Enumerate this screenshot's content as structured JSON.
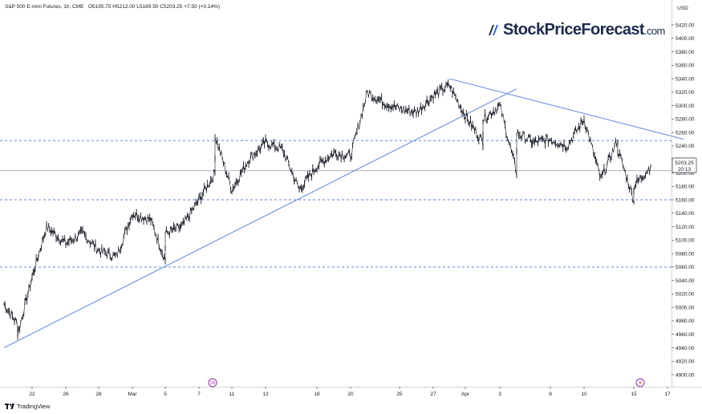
{
  "header": {
    "symbol": "S&P 500 E-mini Futures, 1h, CME",
    "ohlc": "O5195.75  H5212.00  L5189.50  C5203.25  +7.50 (+0.14%)"
  },
  "logo": {
    "name": "StockPriceForecast",
    "domain": ".com"
  },
  "footer": {
    "brand": "TradingView"
  },
  "price_tag": {
    "price": "5203.25",
    "countdown": "20:13"
  },
  "colors": {
    "accent": "#2962ff",
    "trendline": "#5b86e5",
    "candles": "#131722",
    "support": "#5b86e5",
    "current_line": "#9598a1"
  },
  "icons": {
    "event_left": "event-icon",
    "event_right": "flash-icon"
  },
  "chart_data": {
    "type": "line",
    "title": "",
    "yaxis": {
      "unit": "USD",
      "range": [
        4880,
        5440
      ],
      "ticks": [
        4900,
        4920,
        4940,
        4960,
        4980,
        5000,
        5020,
        5040,
        5060,
        5080,
        5100,
        5120,
        5140,
        5160,
        5180,
        5200,
        5220,
        5240,
        5260,
        5280,
        5300,
        5320,
        5340,
        5360,
        5380,
        5400,
        5420
      ],
      "tick_labels": [
        "4900.00",
        "4920.00",
        "4940.00",
        "4960.00",
        "4980.00",
        "5000.00",
        "5020.00",
        "5040.00",
        "5060.00",
        "5080.00",
        "5100.00",
        "5120.00",
        "5140.00",
        "5160.00",
        "5180.00",
        "5200.00",
        "5220.00",
        "5240.00",
        "5260.00",
        "5280.00",
        "5300.00",
        "5320.00",
        "5340.00",
        "5360.00",
        "5380.00",
        "5400.00",
        "5420.00"
      ]
    },
    "xaxis": {
      "ticks": [
        "Feb 22",
        "Feb 26",
        "Feb 28",
        "Mar 1",
        "Mar 5",
        "Mar 7",
        "Mar 11",
        "Mar 13",
        "Mar 18",
        "Mar 20",
        "Mar 25",
        "Mar 27",
        "Apr 1",
        "Apr 3",
        "Apr 8",
        "Apr 10",
        "Apr 15",
        "Apr 17"
      ],
      "tick_labels": [
        "22",
        "26",
        "28",
        "Mar",
        "5",
        "7",
        "11",
        "13",
        "18",
        "20",
        "25",
        "27",
        "Apr",
        "3",
        "8",
        "10",
        "15",
        "17"
      ]
    },
    "series": [
      {
        "x": [
          "Feb 20",
          "Feb 21",
          "Feb 21",
          "Feb 22",
          "Feb 23",
          "Feb 26",
          "Feb 27",
          "Feb 28",
          "Feb 29",
          "Mar 1",
          "Mar 4",
          "Mar 5",
          "Mar 5",
          "Mar 6",
          "Mar 7",
          "Mar 8",
          "Mar 8",
          "Mar 11",
          "Mar 12",
          "Mar 13",
          "Mar 14",
          "Mar 15",
          "Mar 18",
          "Mar 19",
          "Mar 20",
          "Mar 21",
          "Mar 22",
          "Mar 25",
          "Mar 26",
          "Mar 27",
          "Mar 28",
          "Apr 1",
          "Apr 2",
          "Apr 2",
          "Apr 3",
          "Apr 4",
          "Apr 4",
          "Apr 5",
          "Apr 8",
          "Apr 9",
          "Apr 10",
          "Apr 11",
          "Apr 12",
          "Apr 12",
          "Apr 15",
          "Apr 15",
          "Apr 16"
        ],
        "y": [
          5005,
          4975,
          4960,
          5045,
          5120,
          5095,
          5110,
          5085,
          5075,
          5140,
          5130,
          5070,
          5110,
          5120,
          5160,
          5200,
          5255,
          5175,
          5220,
          5245,
          5235,
          5175,
          5210,
          5230,
          5225,
          5320,
          5305,
          5295,
          5290,
          5315,
          5330,
          5285,
          5245,
          5280,
          5300,
          5200,
          5260,
          5245,
          5250,
          5240,
          5280,
          5190,
          5250,
          5235,
          5160,
          5180,
          5210
        ]
      }
    ],
    "trendlines": [
      {
        "from": {
          "x": "Feb 20",
          "y": 4940
        },
        "to": {
          "x": "Apr 4",
          "y": 5325
        }
      },
      {
        "from": {
          "x": "Mar 28",
          "y": 5340
        },
        "to": {
          "x": "Apr 18",
          "y": 5250
        }
      }
    ],
    "horizontal_levels": [
      5060,
      5160,
      5248
    ],
    "current_price": 5203.25
  }
}
